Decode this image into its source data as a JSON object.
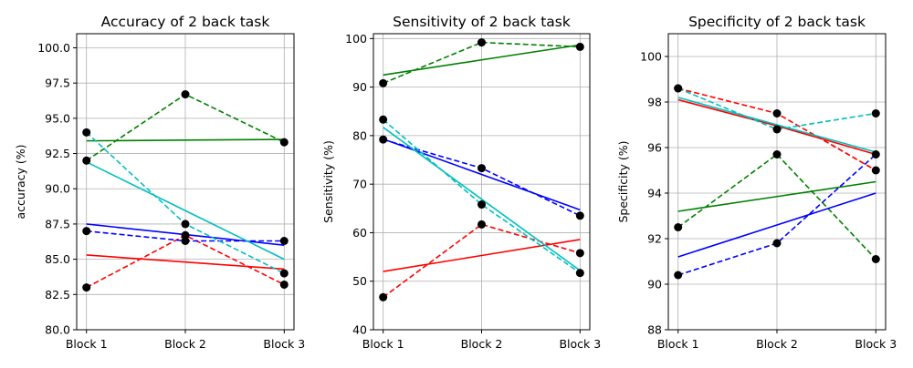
{
  "chart_data": [
    {
      "type": "line",
      "title": "Accuracy of 2 back task",
      "xlabel": "",
      "ylabel": "accuracy (%)",
      "categories": [
        "Block 1",
        "Block 2",
        "Block 3"
      ],
      "ylim": [
        80,
        101
      ],
      "yticks": [
        80.0,
        82.5,
        85.0,
        87.5,
        90.0,
        92.5,
        95.0,
        97.5,
        100.0
      ],
      "ytick_labels": [
        "80.0",
        "82.5",
        "85.0",
        "87.5",
        "90.0",
        "92.5",
        "95.0",
        "97.5",
        "100.0"
      ],
      "grid": true,
      "series": [
        {
          "color": "#ff0000",
          "style": "dashed",
          "markers": true,
          "values": [
            83.0,
            86.7,
            83.2
          ]
        },
        {
          "color": "#ff0000",
          "style": "solid",
          "markers": false,
          "values": [
            85.3,
            84.8,
            84.3
          ]
        },
        {
          "color": "#008000",
          "style": "dashed",
          "markers": true,
          "values": [
            92.0,
            96.7,
            93.3
          ]
        },
        {
          "color": "#008000",
          "style": "solid",
          "markers": false,
          "values": [
            93.4,
            93.45,
            93.5
          ]
        },
        {
          "color": "#0000ff",
          "style": "dashed",
          "markers": true,
          "values": [
            87.0,
            86.3,
            86.3
          ]
        },
        {
          "color": "#0000ff",
          "style": "solid",
          "markers": false,
          "values": [
            87.5,
            86.75,
            86.0
          ]
        },
        {
          "color": "#00bfbf",
          "style": "dashed",
          "markers": true,
          "values": [
            94.0,
            87.5,
            84.0
          ]
        },
        {
          "color": "#00bfbf",
          "style": "solid",
          "markers": false,
          "values": [
            91.9,
            88.45,
            85.0
          ]
        }
      ]
    },
    {
      "type": "line",
      "title": "Sensitivity of 2 back task",
      "xlabel": "",
      "ylabel": "Sensitivity (%)",
      "categories": [
        "Block 1",
        "Block 2",
        "Block 3"
      ],
      "ylim": [
        40,
        101
      ],
      "yticks": [
        40,
        50,
        60,
        70,
        80,
        90,
        100
      ],
      "ytick_labels": [
        "40",
        "50",
        "60",
        "70",
        "80",
        "90",
        "100"
      ],
      "grid": true,
      "series": [
        {
          "color": "#ff0000",
          "style": "dashed",
          "markers": true,
          "values": [
            46.7,
            61.7,
            55.8
          ]
        },
        {
          "color": "#ff0000",
          "style": "solid",
          "markers": false,
          "values": [
            52.0,
            55.3,
            58.6
          ]
        },
        {
          "color": "#008000",
          "style": "dashed",
          "markers": true,
          "values": [
            90.8,
            99.2,
            98.3
          ]
        },
        {
          "color": "#008000",
          "style": "solid",
          "markers": false,
          "values": [
            92.5,
            95.6,
            98.7
          ]
        },
        {
          "color": "#0000ff",
          "style": "dashed",
          "markers": true,
          "values": [
            79.2,
            73.3,
            63.5
          ]
        },
        {
          "color": "#0000ff",
          "style": "solid",
          "markers": false,
          "values": [
            79.3,
            72.0,
            64.7
          ]
        },
        {
          "color": "#00bfbf",
          "style": "dashed",
          "markers": true,
          "values": [
            83.3,
            65.8,
            51.7
          ]
        },
        {
          "color": "#00bfbf",
          "style": "solid",
          "markers": false,
          "values": [
            81.7,
            66.9,
            52.2
          ]
        }
      ]
    },
    {
      "type": "line",
      "title": "Specificity of 2 back task",
      "xlabel": "",
      "ylabel": "Specificity (%)",
      "categories": [
        "Block 1",
        "Block 2",
        "Block 3"
      ],
      "ylim": [
        88,
        101
      ],
      "yticks": [
        88,
        90,
        92,
        94,
        96,
        98,
        100
      ],
      "ytick_labels": [
        "88",
        "90",
        "92",
        "94",
        "96",
        "98",
        "100"
      ],
      "grid": true,
      "series": [
        {
          "color": "#ff0000",
          "style": "dashed",
          "markers": true,
          "values": [
            98.6,
            97.5,
            95.0
          ]
        },
        {
          "color": "#ff0000",
          "style": "solid",
          "markers": false,
          "values": [
            98.1,
            96.95,
            95.7
          ]
        },
        {
          "color": "#008000",
          "style": "dashed",
          "markers": true,
          "values": [
            92.5,
            95.7,
            91.1
          ]
        },
        {
          "color": "#008000",
          "style": "solid",
          "markers": false,
          "values": [
            93.2,
            93.85,
            94.5
          ]
        },
        {
          "color": "#0000ff",
          "style": "dashed",
          "markers": true,
          "values": [
            90.4,
            91.8,
            95.7
          ]
        },
        {
          "color": "#0000ff",
          "style": "solid",
          "markers": false,
          "values": [
            91.2,
            92.6,
            94.0
          ]
        },
        {
          "color": "#00bfbf",
          "style": "dashed",
          "markers": true,
          "values": [
            98.6,
            96.8,
            97.5
          ]
        },
        {
          "color": "#00bfbf",
          "style": "solid",
          "markers": false,
          "values": [
            98.2,
            97.0,
            95.8
          ]
        }
      ]
    }
  ]
}
